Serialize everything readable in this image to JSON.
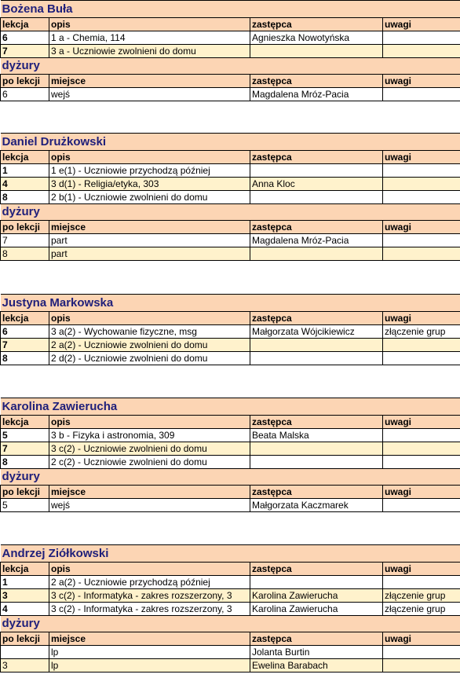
{
  "columns": {
    "lekcja": "lekcja",
    "opis": "opis",
    "zastepca": "zastępca",
    "uwagi": "uwagi",
    "po_lekcji": "po lekcji",
    "miejsce": "miejsce",
    "dyzury": "dyżury"
  },
  "teachers": [
    {
      "name": "Bożena Buła",
      "lessons": [
        {
          "lekcja": "6",
          "opis": "1 a - Chemia, 114",
          "zastepca": "Agnieszka Nowotyńska",
          "uwagi": ""
        },
        {
          "lekcja": "7",
          "opis": "3 a - Uczniowie zwolnieni do domu",
          "zastepca": "",
          "uwagi": ""
        }
      ],
      "duties": [
        {
          "po_lekcji": "6",
          "miejsce": "wejś",
          "zastepca": "Magdalena Mróz-Pacia",
          "uwagi": ""
        }
      ]
    },
    {
      "name": "Daniel Drużkowski",
      "lessons": [
        {
          "lekcja": "1",
          "opis": "1 e(1) - Uczniowie przychodzą później",
          "zastepca": "",
          "uwagi": ""
        },
        {
          "lekcja": "4",
          "opis": "3 d(1) - Religia/etyka, 303",
          "zastepca": "Anna Kloc",
          "uwagi": ""
        },
        {
          "lekcja": "8",
          "opis": "2 b(1) - Uczniowie zwolnieni do domu",
          "zastepca": "",
          "uwagi": ""
        }
      ],
      "duties": [
        {
          "po_lekcji": "7",
          "miejsce": "part",
          "zastepca": "Magdalena Mróz-Pacia",
          "uwagi": ""
        },
        {
          "po_lekcji": "8",
          "miejsce": "part",
          "zastepca": "",
          "uwagi": ""
        }
      ]
    },
    {
      "name": "Justyna Markowska",
      "lessons": [
        {
          "lekcja": "6",
          "opis": "3 a(2) - Wychowanie fizyczne, msg",
          "zastepca": "Małgorzata Wójcikiewicz",
          "uwagi": "złączenie grup"
        },
        {
          "lekcja": "7",
          "opis": "2 a(2) - Uczniowie zwolnieni do domu",
          "zastepca": "",
          "uwagi": ""
        },
        {
          "lekcja": "8",
          "opis": "2 d(2) - Uczniowie zwolnieni do domu",
          "zastepca": "",
          "uwagi": ""
        }
      ],
      "duties": []
    },
    {
      "name": "Karolina Zawierucha",
      "lessons": [
        {
          "lekcja": "5",
          "opis": "3 b - Fizyka i astronomia, 309",
          "zastepca": "Beata Malska",
          "uwagi": ""
        },
        {
          "lekcja": "7",
          "opis": "3 c(2) - Uczniowie zwolnieni do domu",
          "zastepca": "",
          "uwagi": ""
        },
        {
          "lekcja": "8",
          "opis": "2 c(2) - Uczniowie zwolnieni do domu",
          "zastepca": "",
          "uwagi": ""
        }
      ],
      "duties": [
        {
          "po_lekcji": "5",
          "miejsce": "wejś",
          "zastepca": "Małgorzata Kaczmarek",
          "uwagi": ""
        }
      ]
    },
    {
      "name": "Andrzej Ziółkowski",
      "lessons": [
        {
          "lekcja": "1",
          "opis": "2 a(2) - Uczniowie przychodzą później",
          "zastepca": "",
          "uwagi": ""
        },
        {
          "lekcja": "3",
          "opis": "3 c(2) - Informatyka - zakres rozszerzony, 3",
          "zastepca": "Karolina Zawierucha",
          "uwagi": "złączenie grup"
        },
        {
          "lekcja": "4",
          "opis": "3 c(2) - Informatyka - zakres rozszerzony, 3",
          "zastepca": "Karolina Zawierucha",
          "uwagi": "złączenie grup"
        }
      ],
      "duties": [
        {
          "po_lekcji": "",
          "miejsce": "lp",
          "zastepca": "Jolanta Burtin",
          "uwagi": ""
        },
        {
          "po_lekcji": "3",
          "miejsce": "lp",
          "zastepca": "Ewelina Barabach",
          "uwagi": ""
        }
      ]
    }
  ]
}
